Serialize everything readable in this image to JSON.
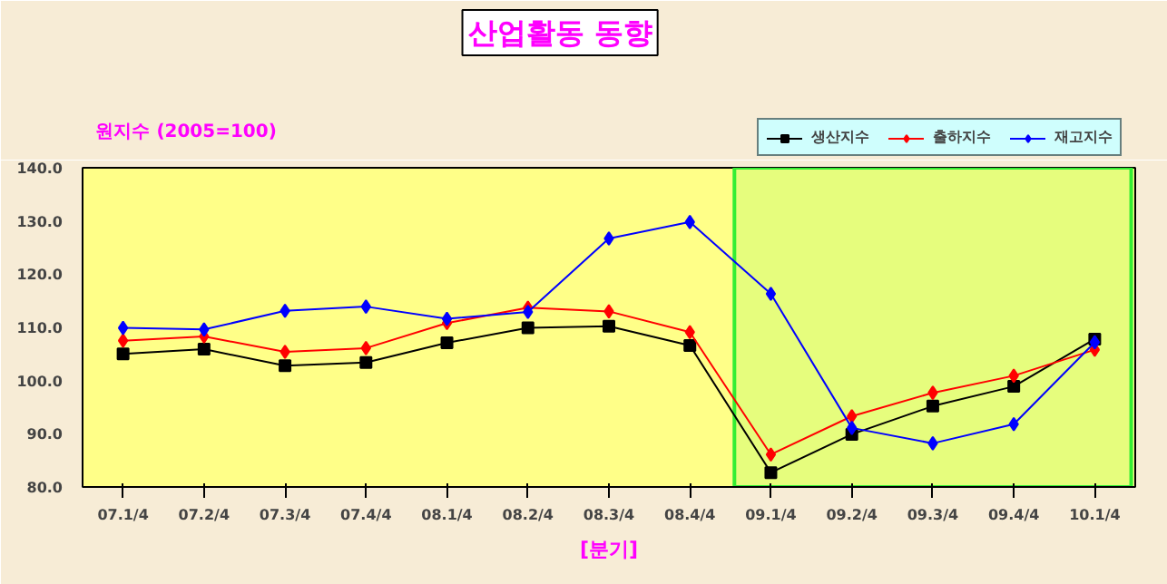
{
  "chart_data": {
    "type": "line",
    "title": "산업활동 동향",
    "ylabel": "원지수 (2005=100)",
    "xlabel": "[분기]",
    "categories": [
      "07.1/4",
      "07.2/4",
      "07.3/4",
      "07.4/4",
      "08.1/4",
      "08.2/4",
      "08.3/4",
      "08.4/4",
      "09.1/4",
      "09.2/4",
      "09.3/4",
      "09.4/4",
      "10.1/4"
    ],
    "series": [
      {
        "name": "생산지수",
        "color": "#000000",
        "marker": "square",
        "values": [
          105.0,
          105.9,
          102.8,
          103.4,
          107.1,
          109.9,
          110.2,
          106.6,
          82.7,
          89.9,
          95.2,
          98.9,
          107.8
        ]
      },
      {
        "name": "출하지수",
        "color": "#ff0000",
        "marker": "diamond",
        "values": [
          107.5,
          108.3,
          105.4,
          106.1,
          110.8,
          113.7,
          113.0,
          109.1,
          86.1,
          93.3,
          97.7,
          100.9,
          105.8
        ]
      },
      {
        "name": "재고지수",
        "color": "#0000ff",
        "marker": "diamond",
        "values": [
          109.9,
          109.6,
          113.1,
          113.9,
          111.6,
          112.9,
          126.7,
          129.8,
          116.3,
          91.1,
          88.2,
          91.8,
          107.2
        ]
      }
    ],
    "ylim": [
      80,
      140
    ],
    "yticks": [
      {
        "value": 80,
        "label": "80.0"
      },
      {
        "value": 90,
        "label": "90.0"
      },
      {
        "value": 100,
        "label": "100.0"
      },
      {
        "value": 110,
        "label": "110.0"
      },
      {
        "value": 120,
        "label": "120.0"
      },
      {
        "value": 130,
        "label": "130.0"
      },
      {
        "value": 140,
        "label": "140.0"
      }
    ],
    "bands": [
      {
        "axis": "x",
        "from": "09.1/4",
        "to": "10.1/4",
        "color": "#33ee33"
      }
    ],
    "grid": false,
    "legend": "top right",
    "line_style": "solid"
  }
}
